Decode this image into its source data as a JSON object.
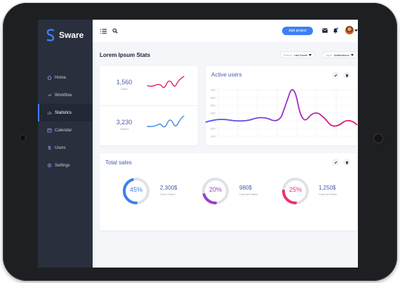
{
  "app": {
    "name": "Sware"
  },
  "sidebar": {
    "items": [
      {
        "label": "Home",
        "icon": "home-icon"
      },
      {
        "label": "Workflow",
        "icon": "workflow-icon"
      },
      {
        "label": "Statistics",
        "icon": "statistics-icon",
        "active": true
      },
      {
        "label": "Calendar",
        "icon": "calendar-icon"
      },
      {
        "label": "Users",
        "icon": "users-icon"
      },
      {
        "label": "Settings",
        "icon": "settings-icon"
      }
    ]
  },
  "header": {
    "add_button": "Add project"
  },
  "page": {
    "title": "Lorem Ipsum Stats"
  },
  "filters": {
    "period_label": "Period:",
    "period_value": "Last Month",
    "type_label": "Type:",
    "type_value": "Notifications"
  },
  "stats": [
    {
      "value": "1,560",
      "label": "Sales"
    },
    {
      "value": "3,230",
      "label": "Visitors"
    }
  ],
  "active_users": {
    "title": "Active users",
    "y_ticks": [
      "700",
      "600",
      "500",
      "400",
      "300",
      "200",
      "100"
    ]
  },
  "total_sales": {
    "title": "Total sales",
    "items": [
      {
        "percent": "45%",
        "fraction": 0.45,
        "amount": "2,300$",
        "label": "Direct Sales",
        "color": "#3d7ff5"
      },
      {
        "percent": "20%",
        "fraction": 0.2,
        "amount": "980$",
        "label": "Channel Sales",
        "color": "#9c3fc7"
      },
      {
        "percent": "25%",
        "fraction": 0.25,
        "amount": "1,250$",
        "label": "Channel Sales",
        "color": "#f0306f"
      }
    ]
  },
  "colors": {
    "accent": "#3d7ff5",
    "sidebar": "#2a2f3e",
    "heading": "#4b5aa8"
  }
}
